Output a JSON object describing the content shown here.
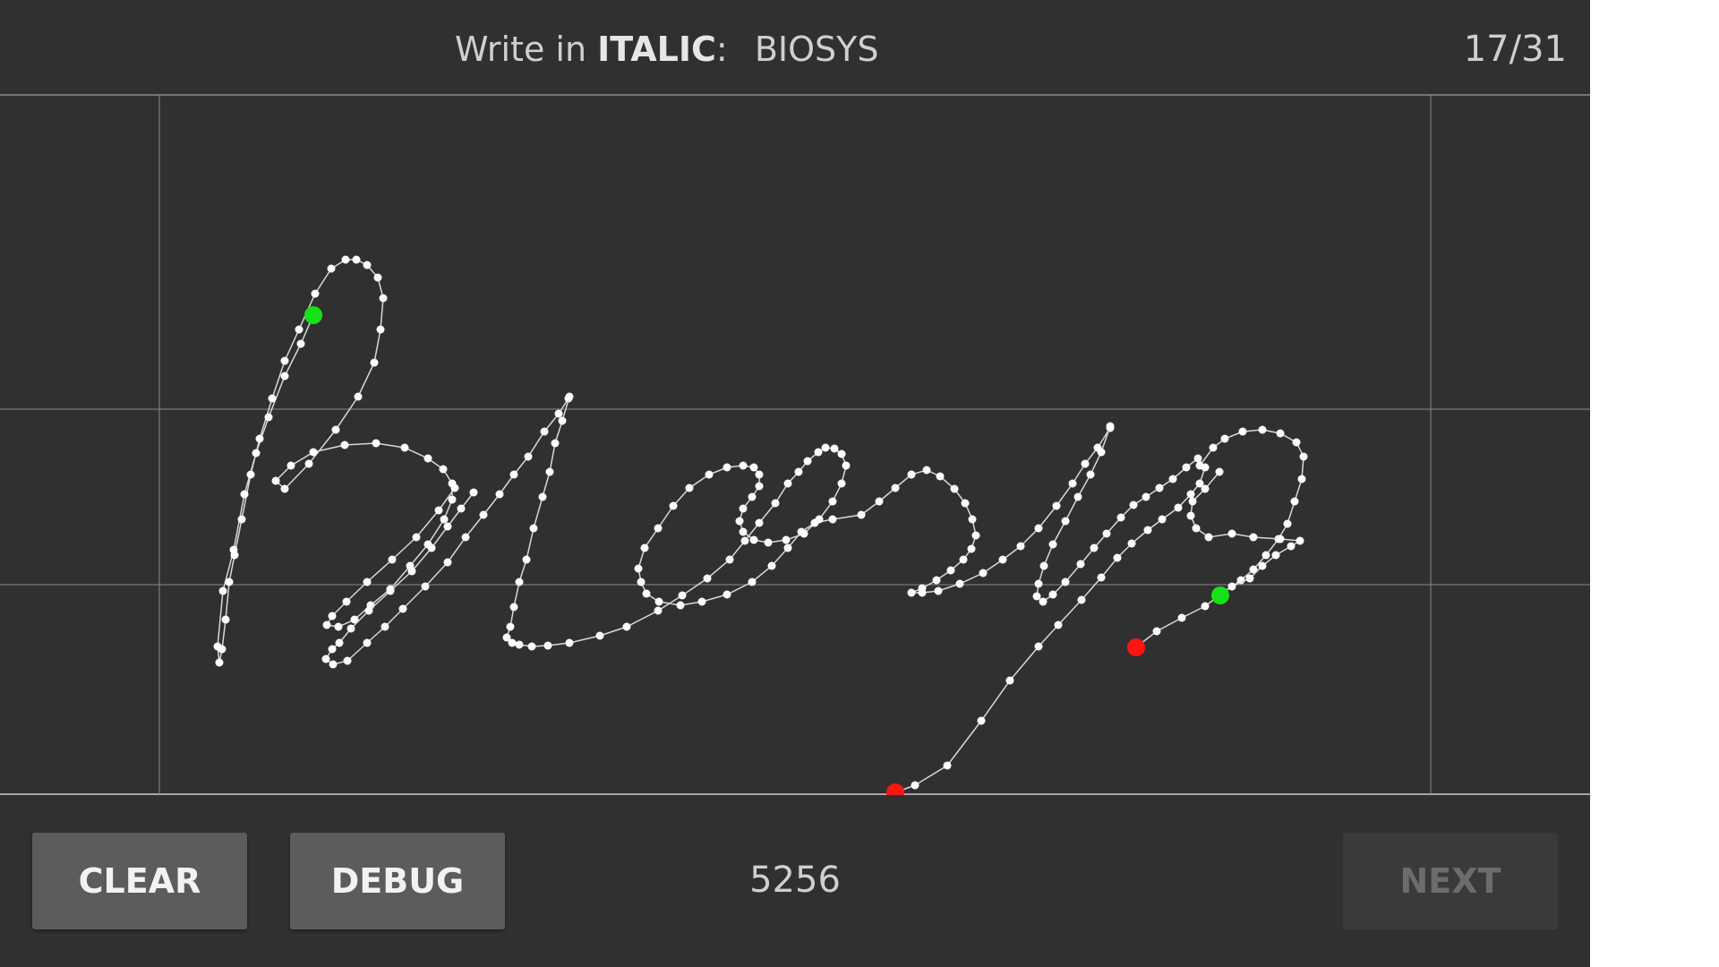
{
  "header": {
    "prompt_prefix": "Write in",
    "mode": "ITALIC",
    "mode_suffix": ":",
    "target_word": "BIOSYS",
    "progress": "17/31"
  },
  "canvas": {
    "background": "#303030",
    "guide_color": "#8a8a8a",
    "point_color": "#ffffff",
    "start_marker_color": "#16e016",
    "end_marker_color": "#ff1414"
  },
  "footer": {
    "clear_label": "CLEAR",
    "debug_label": "DEBUG",
    "point_count": "5256",
    "next_label": "NEXT",
    "next_enabled": false
  }
}
